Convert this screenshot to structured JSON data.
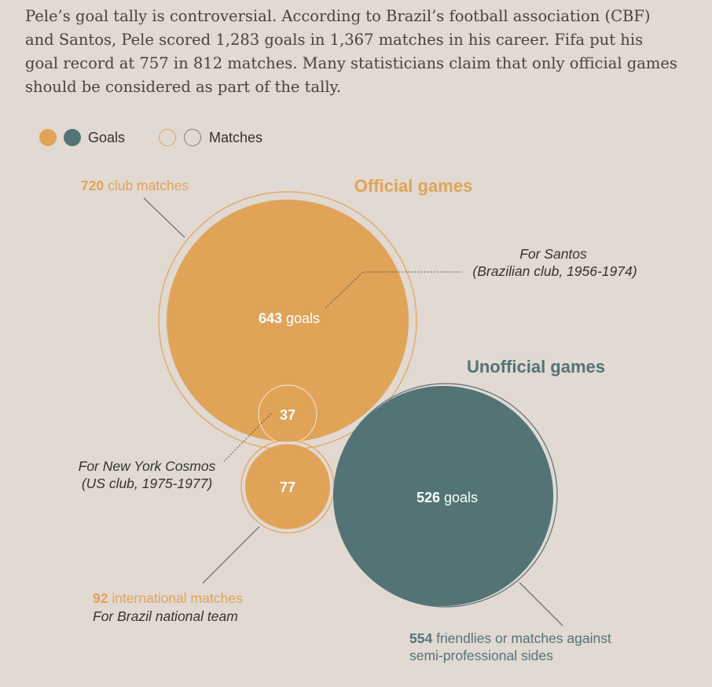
{
  "intro_text": "Pele’s goal tally is controversial. According to Brazil’s football association (CBF) and Santos, Pele scored 1,283 goals in 1,367 matches in his career. Fifa put his goal record at 757 in 812 matches. Many statisticians claim that only official games should be considered as part of the tally.",
  "legend": {
    "goals_label": "Goals",
    "matches_label": "Matches"
  },
  "colors": {
    "official": "#e0a357",
    "unofficial": "#537376",
    "background": "#e1d9d2"
  },
  "chart_data": {
    "type": "bubble",
    "groups": [
      {
        "title": "Official games",
        "color": "#e0a357"
      },
      {
        "title": "Unofficial games",
        "color": "#537376"
      }
    ],
    "bubbles": [
      {
        "id": "santos",
        "group": "Official games",
        "goals": 643,
        "goals_text": "643",
        "goals_unit": "goals",
        "matches": 720,
        "matches_text": "720",
        "matches_label": "club matches",
        "annotation": [
          "For Santos",
          "(Brazilian club, 1956-1974)"
        ]
      },
      {
        "id": "cosmos",
        "group": "Official games",
        "goals": 37,
        "goals_text": "37",
        "annotation": [
          "For New York Cosmos",
          "(US club, 1975-1977)"
        ]
      },
      {
        "id": "brazil",
        "group": "Official games",
        "goals": 77,
        "goals_text": "77",
        "matches": 92,
        "matches_text": "92",
        "matches_label": "international matches",
        "annotation": [
          "For Brazil national team"
        ]
      },
      {
        "id": "unofficial",
        "group": "Unofficial games",
        "goals": 526,
        "goals_text": "526",
        "goals_unit": "goals",
        "matches": 554,
        "matches_text": "554",
        "matches_label": "friendlies or matches against",
        "matches_label_2": "semi-professional sides"
      }
    ]
  }
}
